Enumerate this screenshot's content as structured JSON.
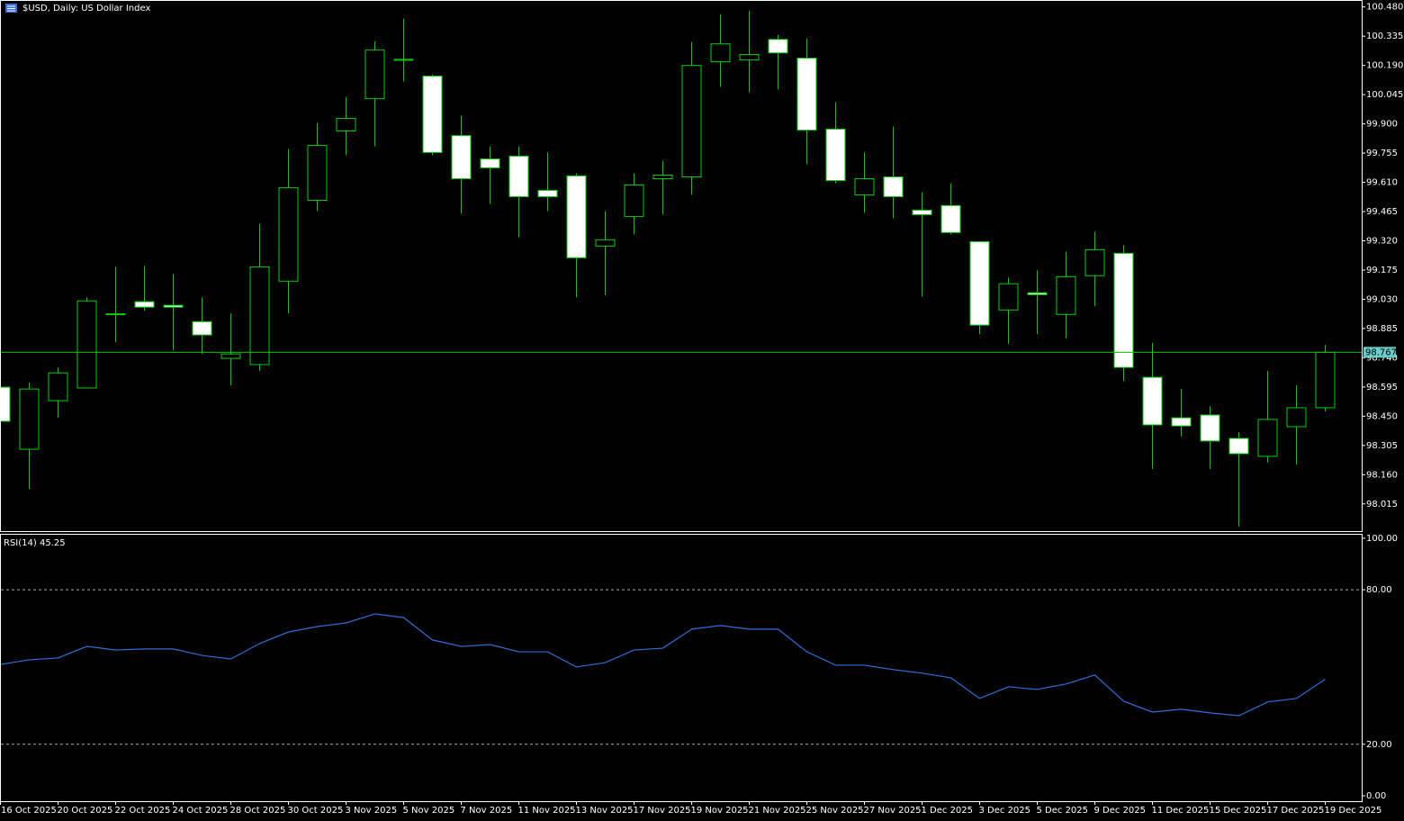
{
  "chart_data": [
    {
      "type": "candlestick",
      "title": "$USD, Daily:  US Dollar Index",
      "categories": [
        "16 Oct 2025",
        null,
        "20 Oct 2025",
        null,
        "22 Oct 2025",
        null,
        "24 Oct 2025",
        null,
        "28 Oct 2025",
        null,
        "30 Oct 2025",
        null,
        "3 Nov 2025",
        null,
        "5 Nov 2025",
        null,
        "7 Nov 2025",
        null,
        "11 Nov 2025",
        null,
        "13 Nov 2025",
        null,
        "17 Nov 2025",
        null,
        "19 Nov 2025",
        null,
        "21 Nov 2025",
        null,
        "25 Nov 2025",
        null,
        "27 Nov 2025",
        null,
        "1 Dec 2025",
        null,
        "3 Dec 2025",
        null,
        "5 Dec 2025",
        null,
        "9 Dec 2025",
        null,
        "11 Dec 2025",
        null,
        "15 Dec 2025",
        null,
        "17 Dec 2025",
        null,
        "19 Dec 2025"
      ],
      "open": [
        98.594,
        98.286,
        98.527,
        98.59,
        98.955,
        99.018,
        99.0,
        98.919,
        98.737,
        98.706,
        99.12,
        99.521,
        99.865,
        100.025,
        100.217,
        100.137,
        99.842,
        99.726,
        99.74,
        99.57,
        99.642,
        99.294,
        99.441,
        99.628,
        99.637,
        100.208,
        100.217,
        100.319,
        100.226,
        99.874,
        99.548,
        99.637,
        99.472,
        99.495,
        99.316,
        98.977,
        99.062,
        98.955,
        99.147,
        99.258,
        98.643,
        98.442,
        98.456,
        98.34,
        98.251,
        98.398,
        98.492
      ],
      "high": [
        98.616,
        98.616,
        98.692,
        99.04,
        99.191,
        99.196,
        99.156,
        99.04,
        98.96,
        99.405,
        99.775,
        99.905,
        100.034,
        100.31,
        100.422,
        100.145,
        99.94,
        99.789,
        99.789,
        99.758,
        99.655,
        99.468,
        99.655,
        99.717,
        100.306,
        100.444,
        100.462,
        100.342,
        100.324,
        100.007,
        99.758,
        99.887,
        99.561,
        99.606,
        99.316,
        99.138,
        99.174,
        99.267,
        99.365,
        99.298,
        98.813,
        98.585,
        98.5,
        98.371,
        98.674,
        98.603,
        98.804
      ],
      "low": [
        98.407,
        98.09,
        98.442,
        98.59,
        98.817,
        98.973,
        98.777,
        98.759,
        98.603,
        98.674,
        98.96,
        99.468,
        99.744,
        99.789,
        100.11,
        99.744,
        99.454,
        99.503,
        99.339,
        99.468,
        99.04,
        99.049,
        99.352,
        99.45,
        99.548,
        100.083,
        100.056,
        100.07,
        99.7,
        99.606,
        99.459,
        99.432,
        99.044,
        99.352,
        98.857,
        98.808,
        98.857,
        98.835,
        98.995,
        98.625,
        98.188,
        98.349,
        98.188,
        97.903,
        98.22,
        98.211,
        98.474
      ],
      "close": [
        98.425,
        98.585,
        98.665,
        99.022,
        98.958,
        98.991,
        98.991,
        98.853,
        98.759,
        99.191,
        99.584,
        99.793,
        99.927,
        100.266,
        100.22,
        99.758,
        99.628,
        99.682,
        99.539,
        99.539,
        99.236,
        99.325,
        99.597,
        99.646,
        100.19,
        100.297,
        100.244,
        100.252,
        99.869,
        99.619,
        99.628,
        99.539,
        99.45,
        99.361,
        98.902,
        99.107,
        99.053,
        99.142,
        99.276,
        98.692,
        98.407,
        98.402,
        98.327,
        98.264,
        98.434,
        98.492,
        98.767
      ],
      "ylim": [
        97.88,
        100.51
      ],
      "yticks": [
        {
          "value": 100.48,
          "label": "100.480"
        },
        100.335,
        {
          "value": 100.19,
          "label": "100.190"
        },
        100.045,
        {
          "value": 99.9,
          "label": "99.900"
        },
        99.755,
        {
          "value": 99.61,
          "label": "99.610"
        },
        99.465,
        {
          "value": 99.32,
          "label": "99.320"
        },
        99.175,
        {
          "value": 99.03,
          "label": "99.030"
        },
        98.885,
        {
          "value": 98.74,
          "label": "98.740"
        },
        98.595,
        {
          "value": 98.45,
          "label": "98.450"
        },
        98.305,
        {
          "value": 98.16,
          "label": "98.160"
        },
        98.015
      ],
      "current_price": 98.767,
      "color": "#00d000",
      "up_color": "#000000",
      "down_color": "#ffffff",
      "price_line_color": "#00c000",
      "price_tag_color": "#66cccc"
    },
    {
      "type": "line",
      "title": "RSI(14) 45.25",
      "values": [
        51.0,
        52.8,
        53.5,
        58.0,
        56.6,
        57.0,
        57.0,
        54.5,
        53.1,
        59.1,
        63.6,
        65.7,
        67.1,
        70.6,
        69.2,
        60.5,
        58.0,
        58.7,
        55.9,
        55.9,
        50.0,
        51.7,
        56.6,
        57.3,
        64.7,
        66.1,
        64.7,
        64.7,
        55.9,
        50.7,
        50.7,
        49.0,
        47.6,
        45.8,
        37.8,
        42.3,
        41.3,
        43.4,
        46.9,
        36.7,
        32.5,
        33.6,
        32.2,
        31.1,
        36.4,
        37.8,
        45.25
      ],
      "ylim": [
        -2.1,
        101.7
      ],
      "yticks": [
        {
          "value": 100,
          "label": "100.00"
        },
        {
          "value": 80,
          "label": "80.00"
        },
        {
          "value": 20,
          "label": "20.00"
        },
        {
          "value": 0,
          "label": "0.00"
        }
      ],
      "levels": [
        80,
        20
      ],
      "color": "#2d6fd8"
    }
  ]
}
